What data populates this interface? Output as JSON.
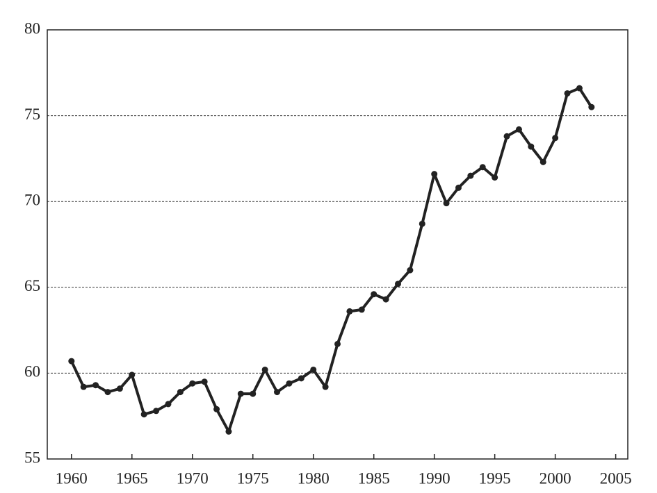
{
  "chart_data": {
    "type": "line",
    "x": [
      1960,
      1961,
      1962,
      1963,
      1964,
      1965,
      1966,
      1967,
      1968,
      1969,
      1970,
      1971,
      1972,
      1973,
      1974,
      1975,
      1976,
      1977,
      1978,
      1979,
      1980,
      1981,
      1982,
      1983,
      1984,
      1985,
      1986,
      1987,
      1988,
      1989,
      1990,
      1991,
      1992,
      1993,
      1994,
      1995,
      1996,
      1997,
      1998,
      1999,
      2000,
      2001,
      2002,
      2003
    ],
    "values": [
      60.7,
      59.2,
      59.3,
      58.9,
      59.1,
      59.9,
      57.6,
      57.8,
      58.2,
      58.9,
      59.4,
      59.5,
      57.9,
      56.6,
      58.8,
      58.8,
      60.2,
      58.9,
      59.4,
      59.7,
      60.2,
      59.2,
      61.7,
      63.6,
      63.7,
      64.6,
      64.3,
      65.2,
      66.0,
      68.7,
      71.6,
      69.9,
      70.8,
      71.5,
      72.0,
      71.4,
      73.8,
      74.2,
      73.2,
      72.3,
      73.7,
      76.3,
      76.6,
      75.5
    ],
    "color": "#222222",
    "xlim": [
      1958,
      2006
    ],
    "xticks": [
      1960,
      1965,
      1970,
      1975,
      1980,
      1985,
      1990,
      1995,
      2000,
      2005
    ],
    "ylim": [
      55,
      80
    ],
    "yticks": [
      55,
      60,
      65,
      70,
      75,
      80
    ],
    "grid": true
  }
}
